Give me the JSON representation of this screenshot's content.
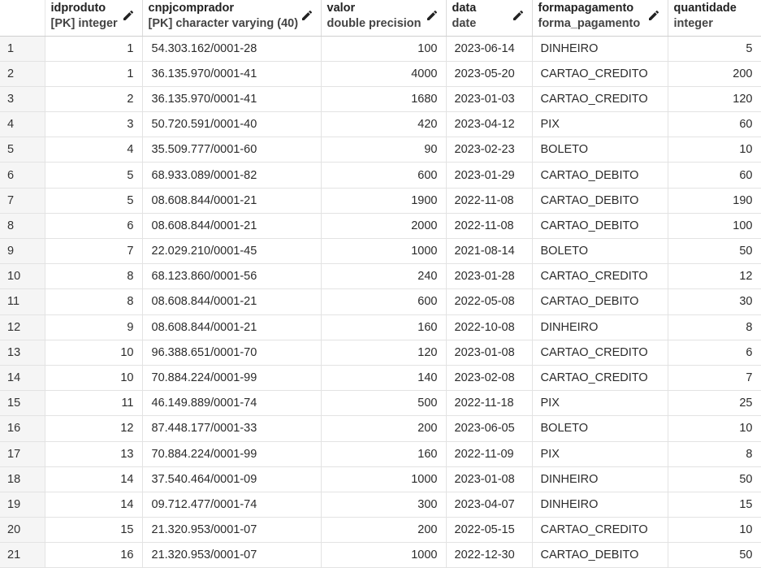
{
  "columns": [
    {
      "name": "idproduto",
      "type": "[PK] integer",
      "editable": true
    },
    {
      "name": "cnpjcomprador",
      "type": "[PK] character varying (40)",
      "editable": true
    },
    {
      "name": "valor",
      "type": "double precision",
      "editable": true
    },
    {
      "name": "data",
      "type": "date",
      "editable": true
    },
    {
      "name": "formapagamento",
      "type": "forma_pagamento",
      "editable": true
    },
    {
      "name": "quantidade",
      "type": "integer",
      "editable": false
    }
  ],
  "rows": [
    [
      "1",
      "1",
      "54.303.162/0001-28",
      "100",
      "2023-06-14",
      "DINHEIRO",
      "5"
    ],
    [
      "2",
      "1",
      "36.135.970/0001-41",
      "4000",
      "2023-05-20",
      "CARTAO_CREDITO",
      "200"
    ],
    [
      "3",
      "2",
      "36.135.970/0001-41",
      "1680",
      "2023-01-03",
      "CARTAO_CREDITO",
      "120"
    ],
    [
      "4",
      "3",
      "50.720.591/0001-40",
      "420",
      "2023-04-12",
      "PIX",
      "60"
    ],
    [
      "5",
      "4",
      "35.509.777/0001-60",
      "90",
      "2023-02-23",
      "BOLETO",
      "10"
    ],
    [
      "6",
      "5",
      "68.933.089/0001-82",
      "600",
      "2023-01-29",
      "CARTAO_DEBITO",
      "60"
    ],
    [
      "7",
      "5",
      "08.608.844/0001-21",
      "1900",
      "2022-11-08",
      "CARTAO_DEBITO",
      "190"
    ],
    [
      "8",
      "6",
      "08.608.844/0001-21",
      "2000",
      "2022-11-08",
      "CARTAO_DEBITO",
      "100"
    ],
    [
      "9",
      "7",
      "22.029.210/0001-45",
      "1000",
      "2021-08-14",
      "BOLETO",
      "50"
    ],
    [
      "10",
      "8",
      "68.123.860/0001-56",
      "240",
      "2023-01-28",
      "CARTAO_CREDITO",
      "12"
    ],
    [
      "11",
      "8",
      "08.608.844/0001-21",
      "600",
      "2022-05-08",
      "CARTAO_DEBITO",
      "30"
    ],
    [
      "12",
      "9",
      "08.608.844/0001-21",
      "160",
      "2022-10-08",
      "DINHEIRO",
      "8"
    ],
    [
      "13",
      "10",
      "96.388.651/0001-70",
      "120",
      "2023-01-08",
      "CARTAO_CREDITO",
      "6"
    ],
    [
      "14",
      "10",
      "70.884.224/0001-99",
      "140",
      "2023-02-08",
      "CARTAO_CREDITO",
      "7"
    ],
    [
      "15",
      "11",
      "46.149.889/0001-74",
      "500",
      "2022-11-18",
      "PIX",
      "25"
    ],
    [
      "16",
      "12",
      "87.448.177/0001-33",
      "200",
      "2023-06-05",
      "BOLETO",
      "10"
    ],
    [
      "17",
      "13",
      "70.884.224/0001-99",
      "160",
      "2022-11-09",
      "PIX",
      "8"
    ],
    [
      "18",
      "14",
      "37.540.464/0001-09",
      "1000",
      "2023-01-08",
      "DINHEIRO",
      "50"
    ],
    [
      "19",
      "14",
      "09.712.477/0001-74",
      "300",
      "2023-04-07",
      "DINHEIRO",
      "15"
    ],
    [
      "20",
      "15",
      "21.320.953/0001-07",
      "200",
      "2022-05-15",
      "CARTAO_CREDITO",
      "10"
    ],
    [
      "21",
      "16",
      "21.320.953/0001-07",
      "1000",
      "2022-12-30",
      "CARTAO_DEBITO",
      "50"
    ]
  ]
}
